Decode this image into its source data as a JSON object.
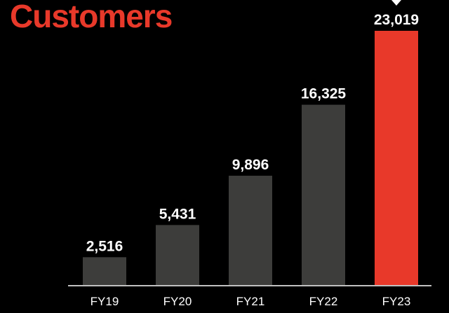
{
  "chart_data": {
    "type": "bar",
    "title": "Customers",
    "categories": [
      "FY19",
      "FY20",
      "FY21",
      "FY22",
      "FY23"
    ],
    "values": [
      2516,
      5431,
      9896,
      16325,
      23019
    ],
    "data_labels": [
      "2,516",
      "5,431",
      "9,896",
      "16,325",
      "23,019"
    ],
    "ylim": [
      0,
      23019
    ],
    "grid": false,
    "legend": "none",
    "highlight_index": 4
  },
  "colors": {
    "background": "#000000",
    "bar": "#3d3d3b",
    "highlight": "#e8392a",
    "title": "#e8392a",
    "text": "#ffffff",
    "axis": "#ffffff"
  }
}
